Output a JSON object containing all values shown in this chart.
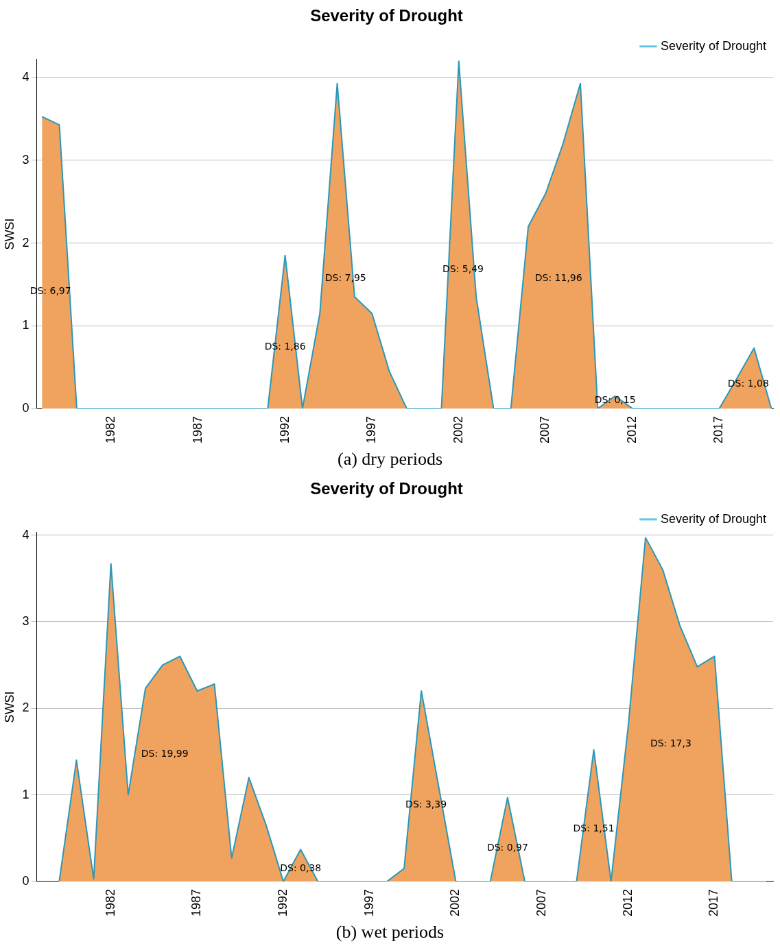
{
  "chart_data": [
    {
      "type": "area",
      "title": "Severity of Drought",
      "ylabel": "SWSI",
      "xlabel": "(a) dry periods",
      "x": [
        1978,
        1979,
        1980,
        1981,
        1982,
        1983,
        1984,
        1985,
        1986,
        1987,
        1988,
        1989,
        1990,
        1991,
        1992,
        1993,
        1994,
        1995,
        1996,
        1997,
        1998,
        1999,
        2000,
        2001,
        2002,
        2003,
        2004,
        2005,
        2006,
        2007,
        2008,
        2009,
        2010,
        2011,
        2012,
        2013,
        2014,
        2015,
        2016,
        2017,
        2018,
        2019,
        2020
      ],
      "series": [
        {
          "name": "Severity of Drought",
          "color": "#f0a35e",
          "values": [
            3.53,
            3.43,
            0,
            0,
            0,
            0,
            0,
            0,
            0,
            0,
            0,
            0,
            0,
            0,
            1.85,
            0,
            1.15,
            3.93,
            1.35,
            1.15,
            0.45,
            0,
            0,
            0,
            4.2,
            1.35,
            0,
            0,
            2.2,
            2.6,
            3.2,
            3.93,
            0,
            0.15,
            0,
            0,
            0,
            0,
            0,
            0,
            0.36,
            0.73,
            0
          ]
        }
      ],
      "xlim": [
        1977.7,
        2020.1
      ],
      "xticks": [
        1982,
        1987,
        1992,
        1997,
        2002,
        2007,
        2012,
        2017
      ],
      "ylim": [
        0,
        4.22
      ],
      "yticks": [
        0,
        1,
        2,
        3,
        4
      ],
      "grid": "y",
      "legend": "top right",
      "annotations": [
        "DS: 6,97",
        "DS: 1,86",
        "DS: 7,95",
        "DS: 5,49",
        "DS: 11,96",
        "DS: 0,15",
        "DS: 1,08"
      ]
    },
    {
      "type": "area",
      "title": "Severity of Drought",
      "ylabel": "SWSI",
      "xlabel": "(b) wet periods",
      "x": [
        1979,
        1980,
        1981,
        1982,
        1983,
        1984,
        1985,
        1986,
        1987,
        1988,
        1989,
        1990,
        1991,
        1992,
        1993,
        1994,
        1995,
        1996,
        1997,
        1998,
        1999,
        2000,
        2001,
        2002,
        2003,
        2004,
        2005,
        2006,
        2007,
        2008,
        2009,
        2010,
        2011,
        2012,
        2013,
        2014,
        2015,
        2016,
        2017,
        2018,
        2019,
        2020
      ],
      "series": [
        {
          "name": "Severity of Drought",
          "color": "#f0a35e",
          "values": [
            0,
            1.4,
            0.03,
            3.67,
            1.0,
            2.23,
            2.5,
            2.6,
            2.2,
            2.28,
            0.27,
            1.2,
            0.65,
            0,
            0.37,
            0,
            0,
            0,
            0,
            0,
            0.15,
            2.2,
            1.1,
            0,
            0,
            0,
            0.97,
            0,
            0,
            0,
            0,
            1.52,
            0,
            1.8,
            3.97,
            3.6,
            2.95,
            2.48,
            2.6,
            0,
            0,
            0
          ]
        }
      ],
      "xlim": [
        1977.7,
        2020.4
      ],
      "xticks": [
        1982,
        1987,
        1992,
        1997,
        2002,
        2007,
        2012,
        2017
      ],
      "ylim": [
        0,
        4.03
      ],
      "yticks": [
        0,
        1,
        2,
        3,
        4
      ],
      "grid": "y",
      "legend": "top right",
      "annotations": [
        "DS: 19,99",
        "DS: 0,38",
        "DS: 3,39",
        "DS: 0,97",
        "DS: 1,51",
        "DS: 17,3"
      ]
    }
  ]
}
